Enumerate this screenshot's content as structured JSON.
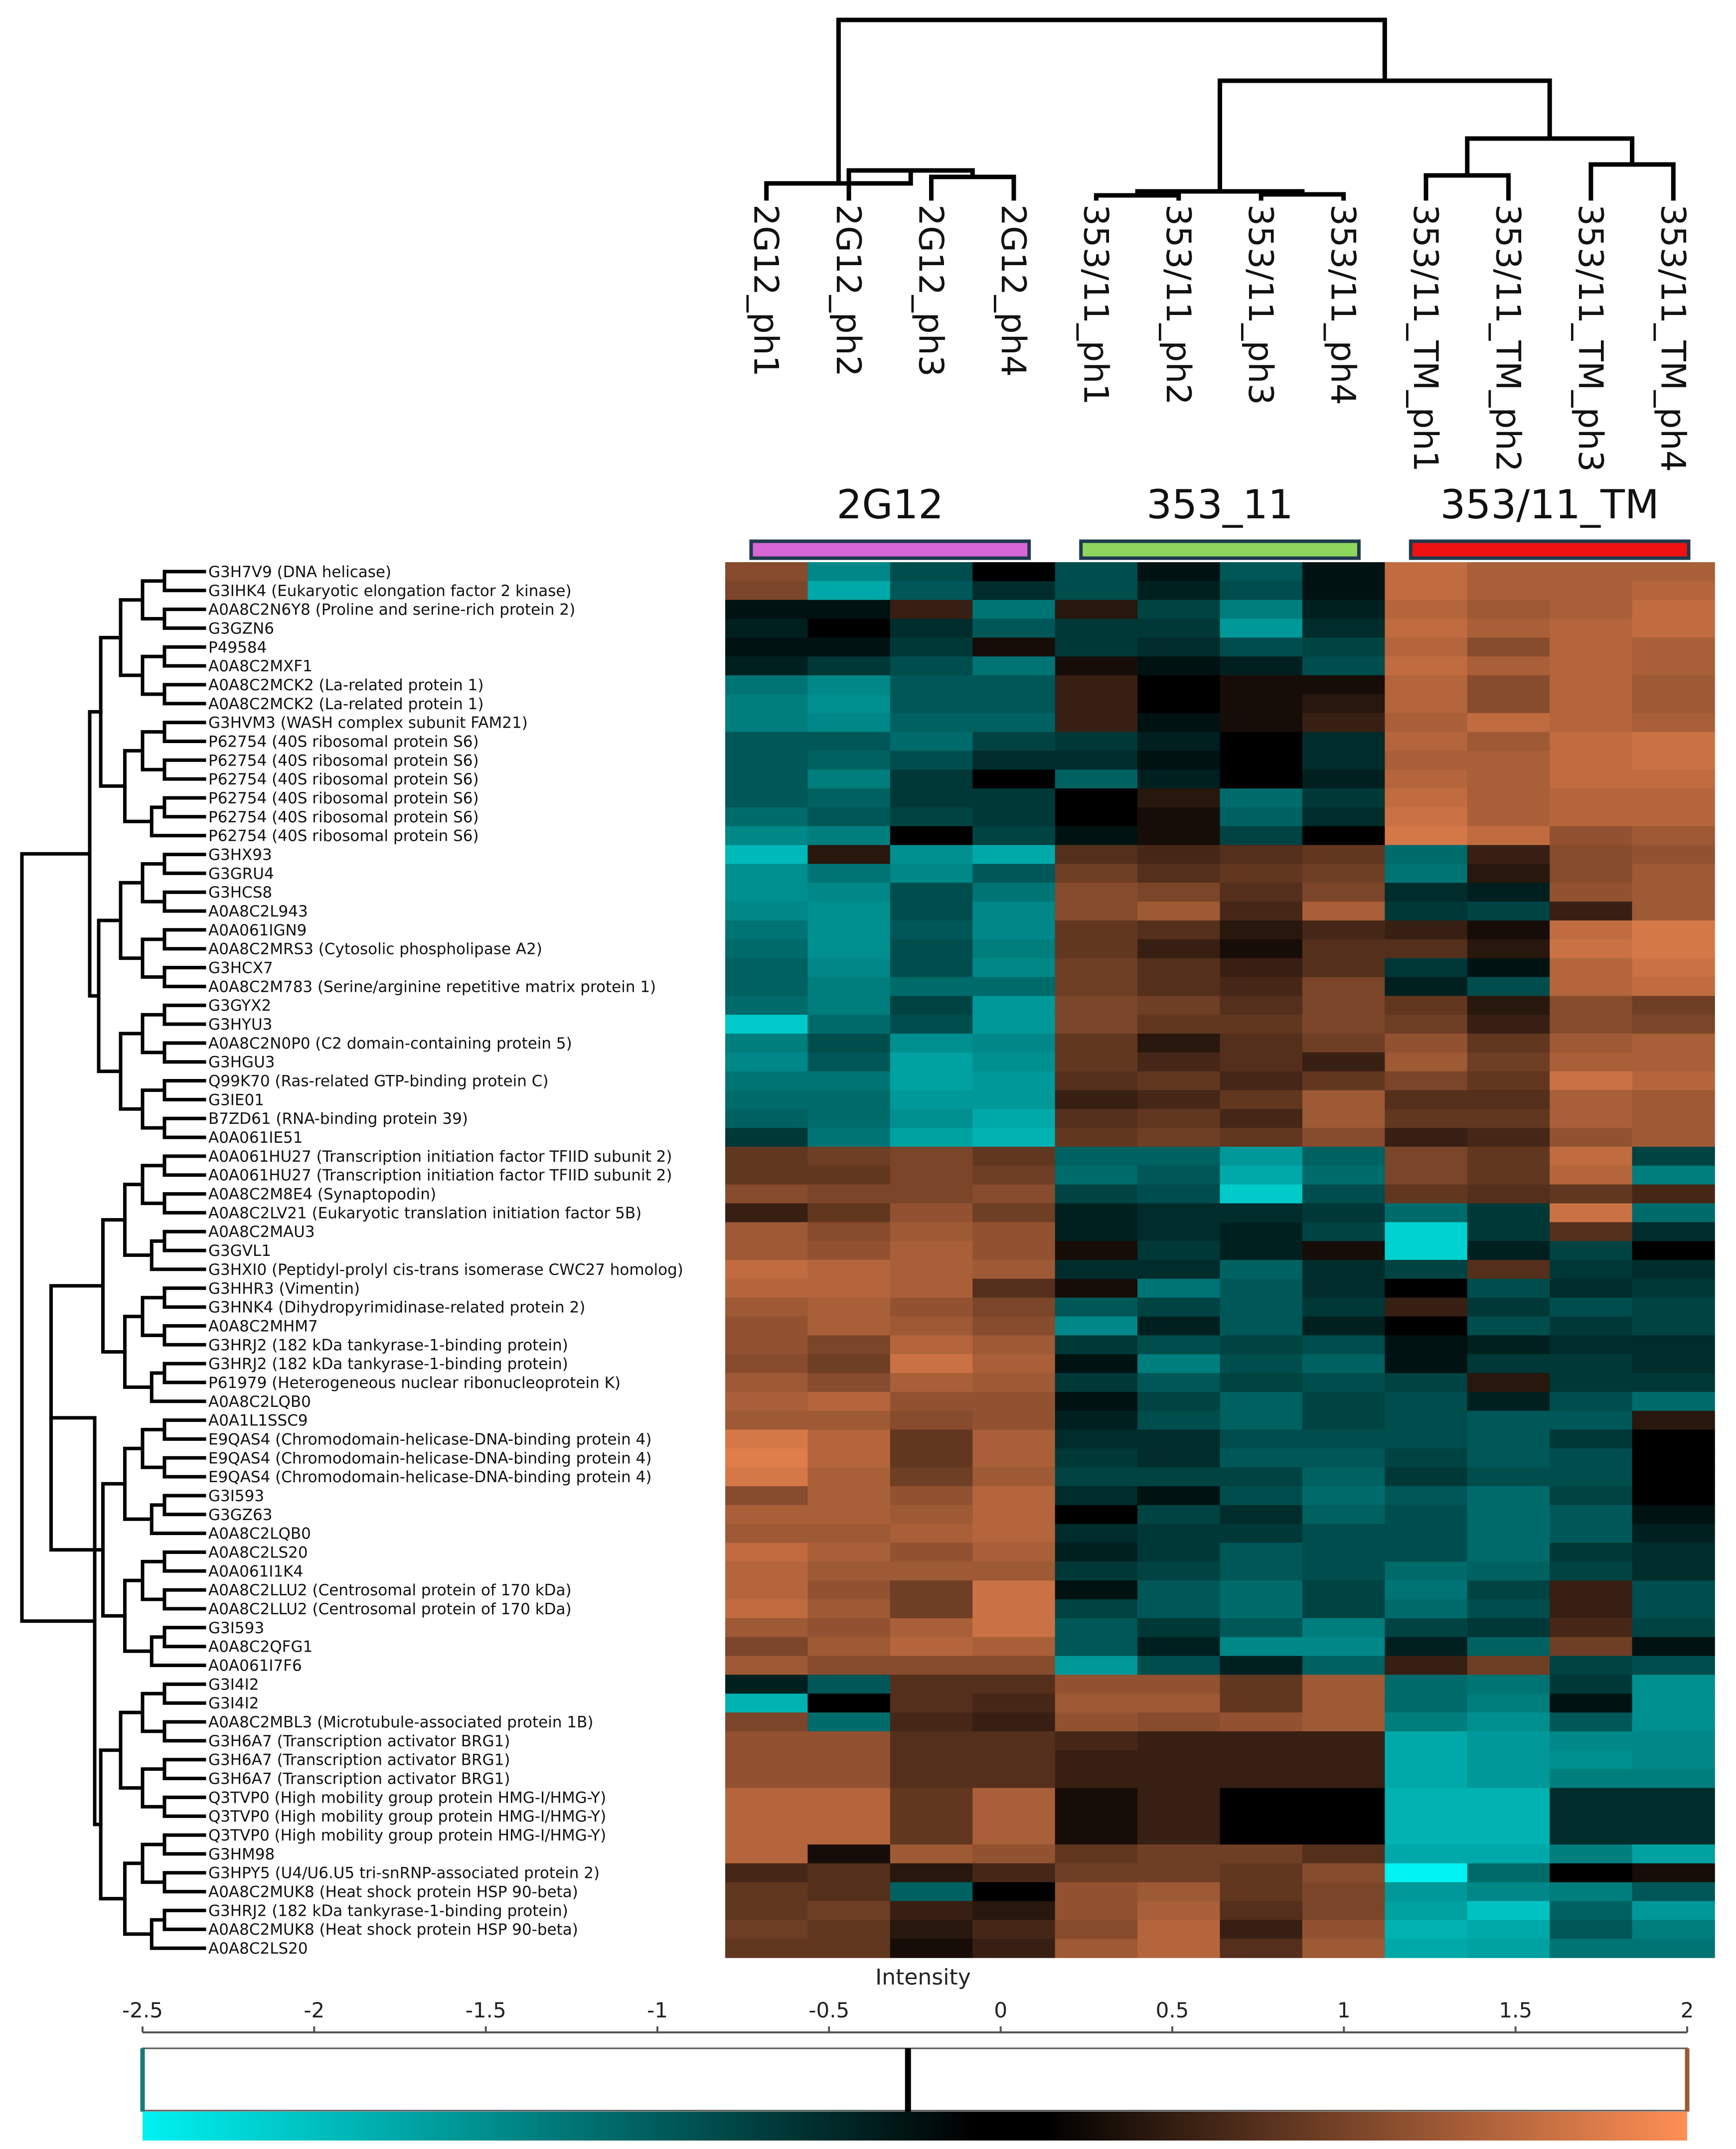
{
  "chart_data": {
    "type": "heatmap",
    "title": "",
    "samples": [
      "2G12_ph1",
      "2G12_ph2",
      "2G12_ph3",
      "2G12_ph4",
      "353/11_ph1",
      "353/11_ph2",
      "353/11_ph3",
      "353/11_ph4",
      "353/11_TM_ph1",
      "353/11_TM_ph2",
      "353/11_TM_ph3",
      "353/11_TM_ph4"
    ],
    "groups": [
      {
        "name": "2G12",
        "color": "#d966d6"
      },
      {
        "name": "353_11",
        "color": "#8fd65e"
      },
      {
        "name": "353/11_TM",
        "color": "#f01212"
      }
    ],
    "rows": [
      "G3H7V9 (DNA helicase)",
      "G3IHK4 (Eukaryotic elongation factor 2 kinase)",
      "A0A8C2N6Y8 (Proline and serine-rich protein 2)",
      "G3GZN6",
      "P49584",
      "A0A8C2MXF1",
      "A0A8C2MCK2 (La-related protein 1)",
      "A0A8C2MCK2 (La-related protein 1)",
      "G3HVM3 (WASH complex subunit FAM21)",
      "P62754 (40S ribosomal protein S6)",
      "P62754 (40S ribosomal protein S6)",
      "P62754 (40S ribosomal protein S6)",
      "P62754 (40S ribosomal protein S6)",
      "P62754 (40S ribosomal protein S6)",
      "P62754 (40S ribosomal protein S6)",
      "G3HX93",
      "G3GRU4",
      "G3HCS8",
      "A0A8C2L943",
      "A0A061IGN9",
      "A0A8C2MRS3 (Cytosolic phospholipase A2)",
      "G3HCX7",
      "A0A8C2M783 (Serine/arginine repetitive matrix protein 1)",
      "G3GYX2",
      "G3HYU3",
      "A0A8C2N0P0 (C2 domain-containing protein 5)",
      "G3HGU3",
      "Q99K70 (Ras-related GTP-binding protein C)",
      "G3IE01",
      "B7ZD61 (RNA-binding protein 39)",
      "A0A061IE51",
      "A0A061HU27 (Transcription initiation factor TFIID subunit 2)",
      "A0A061HU27 (Transcription initiation factor TFIID subunit 2)",
      "A0A8C2M8E4 (Synaptopodin)",
      "A0A8C2LV21 (Eukaryotic translation initiation factor 5B)",
      "A0A8C2MAU3",
      "G3GVL1",
      "G3HXI0 (Peptidyl-prolyl cis-trans isomerase CWC27 homolog)",
      "G3HHR3 (Vimentin)",
      "G3HNK4 (Dihydropyrimidinase-related protein 2)",
      "A0A8C2MHM7",
      "G3HRJ2 (182 kDa tankyrase-1-binding protein)",
      "G3HRJ2 (182 kDa tankyrase-1-binding protein)",
      "P61979 (Heterogeneous nuclear ribonucleoprotein K)",
      "A0A8C2LQB0",
      "A0A1L1SSC9",
      "E9QAS4 (Chromodomain-helicase-DNA-binding protein 4)",
      "E9QAS4 (Chromodomain-helicase-DNA-binding protein 4)",
      "E9QAS4 (Chromodomain-helicase-DNA-binding protein 4)",
      "G3I593",
      "G3GZ63",
      "A0A8C2LQB0",
      "A0A8C2LS20",
      "A0A061I1K4",
      "A0A8C2LLU2 (Centrosomal protein of 170 kDa)",
      "A0A8C2LLU2 (Centrosomal protein of 170 kDa)",
      "G3I593",
      "A0A8C2QFG1",
      "A0A061I7F6",
      "G3I4I2",
      "G3I4I2",
      "A0A8C2MBL3 (Microtubule-associated protein 1B)",
      "G3H6A7 (Transcription activator BRG1)",
      "G3H6A7 (Transcription activator BRG1)",
      "G3H6A7 (Transcription activator BRG1)",
      "Q3TVP0 (High mobility group protein HMG-I/HMG-Y)",
      "Q3TVP0 (High mobility group protein HMG-I/HMG-Y)",
      "Q3TVP0 (High mobility group protein HMG-I/HMG-Y)",
      "G3HM98",
      "G3HPY5 (U4/U6.U5 tri-snRNP-associated protein 2)",
      "A0A8C2MUK8 (Heat shock protein HSP 90-beta)",
      "G3HRJ2 (182 kDa tankyrase-1-binding protein)",
      "A0A8C2MUK8 (Heat shock protein HSP 90-beta)",
      "A0A8C2LS20"
    ],
    "values": [
      [
        0.9,
        -1.2,
        -0.6,
        0.0,
        -0.6,
        -0.1,
        -0.7,
        -0.1,
        1.4,
        1.2,
        1.2,
        1.2
      ],
      [
        0.8,
        -1.6,
        -0.7,
        -0.3,
        -0.6,
        -0.2,
        -0.6,
        -0.1,
        1.4,
        1.2,
        1.2,
        1.3
      ],
      [
        -0.1,
        -0.1,
        0.3,
        -1.0,
        0.2,
        -0.5,
        -1.1,
        -0.2,
        1.3,
        1.1,
        1.2,
        1.4
      ],
      [
        -0.2,
        0.0,
        -0.3,
        -0.7,
        -0.4,
        -0.4,
        -1.4,
        -0.3,
        1.4,
        1.2,
        1.3,
        1.4
      ],
      [
        -0.1,
        -0.1,
        -0.4,
        0.1,
        -0.4,
        -0.3,
        -0.6,
        -0.5,
        1.3,
        0.9,
        1.3,
        1.2
      ],
      [
        -0.2,
        -0.4,
        -0.6,
        -1.0,
        0.1,
        -0.1,
        -0.2,
        -0.6,
        1.4,
        1.2,
        1.3,
        1.2
      ],
      [
        -1.0,
        -1.2,
        -0.7,
        -0.7,
        0.3,
        0.0,
        0.1,
        0.1,
        1.3,
        0.9,
        1.3,
        1.1
      ],
      [
        -1.1,
        -1.3,
        -0.7,
        -0.7,
        0.3,
        0.0,
        0.1,
        0.2,
        1.3,
        0.9,
        1.3,
        1.1
      ],
      [
        -1.1,
        -1.2,
        -0.8,
        -0.8,
        0.3,
        -0.1,
        0.1,
        0.3,
        1.2,
        1.4,
        1.3,
        1.2
      ],
      [
        -0.7,
        -0.7,
        -0.9,
        -0.5,
        -0.4,
        -0.2,
        0.0,
        -0.3,
        1.3,
        1.1,
        1.4,
        1.5
      ],
      [
        -0.7,
        -0.8,
        -0.6,
        -0.3,
        -0.3,
        -0.1,
        0.0,
        -0.3,
        1.2,
        1.2,
        1.4,
        1.5
      ],
      [
        -0.7,
        -1.1,
        -0.4,
        0.0,
        -0.8,
        -0.2,
        0.0,
        -0.2,
        1.3,
        1.2,
        1.4,
        1.4
      ],
      [
        -0.7,
        -0.8,
        -0.4,
        -0.4,
        0.0,
        0.2,
        -0.9,
        -0.4,
        1.4,
        1.2,
        1.3,
        1.3
      ],
      [
        -0.9,
        -0.7,
        -0.5,
        -0.4,
        0.0,
        0.1,
        -0.8,
        -0.3,
        1.5,
        1.2,
        1.3,
        1.3
      ],
      [
        -1.2,
        -1.1,
        0.0,
        -0.5,
        -0.1,
        0.1,
        -0.5,
        0.0,
        1.6,
        1.4,
        1.0,
        1.1
      ],
      [
        -1.8,
        0.2,
        -1.3,
        -1.6,
        0.5,
        0.4,
        0.5,
        0.6,
        -0.9,
        0.3,
        0.9,
        1.0
      ],
      [
        -1.3,
        -1.0,
        -1.2,
        -0.7,
        0.7,
        0.5,
        0.6,
        0.7,
        -1.0,
        0.2,
        0.9,
        1.1
      ],
      [
        -1.3,
        -1.2,
        -0.6,
        -1.0,
        0.9,
        0.8,
        0.5,
        0.8,
        -0.3,
        -0.2,
        1.0,
        1.1
      ],
      [
        -1.2,
        -1.3,
        -0.6,
        -1.2,
        0.9,
        1.1,
        0.4,
        1.2,
        -0.4,
        -0.5,
        0.3,
        1.1
      ],
      [
        -1.0,
        -1.3,
        -0.7,
        -1.2,
        0.6,
        0.5,
        0.2,
        0.4,
        0.3,
        0.1,
        1.4,
        1.6
      ],
      [
        -0.9,
        -1.3,
        -0.6,
        -1.1,
        0.6,
        0.3,
        0.1,
        0.5,
        0.5,
        0.2,
        1.5,
        1.6
      ],
      [
        -0.8,
        -1.2,
        -0.6,
        -1.2,
        0.7,
        0.5,
        0.3,
        0.5,
        -0.4,
        -0.1,
        1.3,
        1.5
      ],
      [
        -0.8,
        -1.1,
        -0.9,
        -0.9,
        0.7,
        0.5,
        0.4,
        0.8,
        -0.2,
        -0.6,
        1.3,
        1.4
      ],
      [
        -0.9,
        -1.1,
        -0.5,
        -1.4,
        0.8,
        0.7,
        0.5,
        0.8,
        0.6,
        0.2,
        0.9,
        0.7
      ],
      [
        -2.0,
        -0.9,
        -0.6,
        -1.4,
        0.8,
        0.6,
        0.6,
        0.8,
        0.7,
        0.3,
        0.9,
        0.8
      ],
      [
        -1.1,
        -0.6,
        -1.3,
        -1.2,
        0.6,
        0.2,
        0.5,
        0.7,
        1.0,
        0.6,
        1.1,
        1.2
      ],
      [
        -1.2,
        -0.7,
        -1.5,
        -1.3,
        0.6,
        0.4,
        0.5,
        0.3,
        1.1,
        0.7,
        1.2,
        1.2
      ],
      [
        -1.0,
        -1.0,
        -1.5,
        -1.4,
        0.5,
        0.6,
        0.4,
        0.6,
        0.8,
        0.6,
        1.5,
        1.3
      ],
      [
        -0.9,
        -0.9,
        -1.4,
        -1.4,
        0.3,
        0.4,
        0.6,
        1.1,
        0.5,
        0.5,
        1.2,
        1.1
      ],
      [
        -0.8,
        -0.9,
        -1.3,
        -1.6,
        0.5,
        0.6,
        0.4,
        1.1,
        0.6,
        0.6,
        1.2,
        1.1
      ],
      [
        -0.4,
        -1.0,
        -1.5,
        -1.7,
        0.6,
        0.7,
        0.6,
        0.9,
        0.3,
        0.4,
        1.0,
        1.1
      ],
      [
        0.6,
        0.7,
        0.8,
        0.6,
        -0.8,
        -0.8,
        -1.4,
        -0.8,
        0.8,
        0.6,
        1.4,
        -0.5
      ],
      [
        0.6,
        0.6,
        0.8,
        0.7,
        -0.9,
        -0.7,
        -1.6,
        -0.9,
        0.8,
        0.6,
        1.3,
        -1.1
      ],
      [
        0.9,
        0.8,
        0.8,
        0.9,
        -0.5,
        -0.6,
        -2.0,
        -0.6,
        0.6,
        0.5,
        0.6,
        0.4
      ],
      [
        0.3,
        0.6,
        1.0,
        0.7,
        -0.2,
        -0.3,
        -0.3,
        -0.4,
        -0.9,
        -0.4,
        1.5,
        -0.9
      ],
      [
        1.1,
        0.9,
        1.1,
        1.0,
        -0.2,
        -0.3,
        -0.2,
        -0.5,
        -2.1,
        -0.4,
        0.5,
        -0.3
      ],
      [
        1.1,
        1.0,
        1.2,
        1.0,
        0.1,
        -0.4,
        -0.2,
        0.1,
        -2.1,
        -0.2,
        -0.5,
        0.0
      ],
      [
        1.4,
        1.3,
        1.2,
        1.1,
        -0.3,
        -0.3,
        -0.8,
        -0.3,
        -0.5,
        0.5,
        -0.4,
        -0.3
      ],
      [
        1.3,
        1.3,
        1.2,
        0.5,
        0.1,
        -1.0,
        -0.7,
        -0.3,
        0.0,
        -0.6,
        -0.3,
        -0.4
      ],
      [
        1.1,
        1.2,
        1.0,
        0.8,
        -0.7,
        -0.5,
        -0.7,
        -0.4,
        0.3,
        -0.4,
        -0.6,
        -0.5
      ],
      [
        1.0,
        1.2,
        1.1,
        0.9,
        -1.2,
        -0.2,
        -0.7,
        -0.2,
        0.0,
        -0.6,
        -0.4,
        -0.5
      ],
      [
        1.0,
        0.8,
        1.3,
        1.1,
        -0.4,
        -0.6,
        -0.5,
        -0.6,
        -0.1,
        -0.2,
        -0.3,
        -0.3
      ],
      [
        0.9,
        0.7,
        1.5,
        1.2,
        -0.1,
        -1.1,
        -0.6,
        -0.8,
        -0.1,
        -0.4,
        -0.4,
        -0.3
      ],
      [
        1.1,
        0.9,
        1.2,
        1.1,
        -0.4,
        -0.7,
        -0.5,
        -0.6,
        -0.5,
        0.2,
        -0.4,
        -0.4
      ],
      [
        1.2,
        1.3,
        1.0,
        1.0,
        -0.1,
        -0.5,
        -0.8,
        -0.5,
        -0.6,
        -0.2,
        -0.6,
        -0.9
      ],
      [
        1.1,
        1.1,
        0.9,
        1.0,
        -0.2,
        -0.6,
        -0.8,
        -0.5,
        -0.6,
        -0.7,
        -0.7,
        0.2
      ],
      [
        1.6,
        1.3,
        0.6,
        1.2,
        -0.3,
        -0.3,
        -0.6,
        -0.6,
        -0.6,
        -0.7,
        -0.4,
        0.0
      ],
      [
        1.7,
        1.3,
        0.6,
        1.2,
        -0.4,
        -0.3,
        -0.7,
        -0.7,
        -0.5,
        -0.7,
        -0.6,
        0.0
      ],
      [
        1.6,
        1.2,
        0.7,
        1.1,
        -0.5,
        -0.5,
        -0.5,
        -0.8,
        -0.4,
        -0.6,
        -0.6,
        0.0
      ],
      [
        0.9,
        1.2,
        1.0,
        1.3,
        -0.3,
        -0.1,
        -0.6,
        -0.9,
        -0.7,
        -0.9,
        -0.5,
        0.0
      ],
      [
        1.2,
        1.2,
        1.1,
        1.3,
        0.0,
        -0.5,
        -0.3,
        -0.8,
        -0.6,
        -0.9,
        -0.7,
        -0.1
      ],
      [
        1.1,
        1.1,
        1.2,
        1.3,
        -0.3,
        -0.4,
        -0.4,
        -0.6,
        -0.6,
        -0.9,
        -0.7,
        -0.2
      ],
      [
        1.4,
        1.2,
        1.0,
        1.2,
        -0.2,
        -0.4,
        -0.7,
        -0.6,
        -0.6,
        -0.9,
        -0.4,
        -0.3
      ],
      [
        1.3,
        1.1,
        1.1,
        1.1,
        -0.4,
        -0.5,
        -0.7,
        -0.6,
        -0.9,
        -0.8,
        -0.5,
        -0.3
      ],
      [
        1.3,
        1.0,
        0.7,
        1.5,
        -0.1,
        -0.7,
        -0.9,
        -0.5,
        -1.0,
        -0.5,
        0.3,
        -0.6
      ],
      [
        1.4,
        1.1,
        0.7,
        1.5,
        -0.5,
        -0.7,
        -0.9,
        -0.5,
        -0.9,
        -0.6,
        0.3,
        -0.6
      ],
      [
        1.1,
        1.0,
        1.2,
        1.5,
        -0.7,
        -0.4,
        -0.7,
        -1.1,
        -0.5,
        -0.4,
        0.4,
        -0.5
      ],
      [
        0.8,
        1.1,
        1.3,
        1.2,
        -0.7,
        -0.2,
        -1.2,
        -1.2,
        -0.2,
        -0.8,
        0.7,
        -0.1
      ],
      [
        1.1,
        0.9,
        0.9,
        0.9,
        -1.4,
        -0.6,
        -0.2,
        -0.8,
        0.3,
        0.7,
        -0.5,
        -0.6
      ],
      [
        -0.2,
        -0.7,
        0.5,
        0.5,
        1.0,
        1.0,
        0.6,
        1.1,
        -0.9,
        -1.0,
        -0.4,
        -1.3
      ],
      [
        -1.7,
        0.0,
        0.5,
        0.4,
        1.1,
        1.1,
        0.6,
        1.1,
        -0.9,
        -1.1,
        -0.1,
        -1.3
      ],
      [
        0.8,
        -0.9,
        0.4,
        0.3,
        1.0,
        0.9,
        1.0,
        1.1,
        -1.1,
        -1.3,
        -0.7,
        -1.3
      ],
      [
        1.0,
        1.0,
        0.5,
        0.5,
        0.4,
        0.3,
        0.3,
        0.3,
        -1.6,
        -1.4,
        -1.2,
        -1.2
      ],
      [
        1.0,
        1.0,
        0.5,
        0.5,
        0.3,
        0.3,
        0.3,
        0.3,
        -1.6,
        -1.4,
        -1.3,
        -1.2
      ],
      [
        1.0,
        1.0,
        0.5,
        0.5,
        0.3,
        0.3,
        0.3,
        0.3,
        -1.6,
        -1.4,
        -1.1,
        -1.1
      ],
      [
        1.3,
        1.3,
        0.6,
        1.2,
        0.1,
        0.3,
        0.0,
        0.0,
        -1.7,
        -1.7,
        -0.3,
        -0.3
      ],
      [
        1.3,
        1.3,
        0.6,
        1.2,
        0.1,
        0.3,
        0.0,
        0.0,
        -1.7,
        -1.7,
        -0.3,
        -0.3
      ],
      [
        1.3,
        1.3,
        0.6,
        1.2,
        0.1,
        0.3,
        0.0,
        0.0,
        -1.7,
        -1.7,
        -0.3,
        -0.3
      ],
      [
        1.3,
        0.1,
        1.1,
        1.0,
        0.6,
        0.7,
        0.7,
        0.5,
        -1.6,
        -1.6,
        -1.1,
        -1.5
      ],
      [
        0.4,
        0.5,
        0.2,
        0.4,
        0.7,
        0.7,
        0.6,
        0.9,
        -2.5,
        -0.9,
        0.0,
        0.1
      ],
      [
        0.6,
        0.5,
        -0.8,
        0.0,
        1.0,
        1.1,
        0.6,
        0.8,
        -1.4,
        -1.2,
        -1.1,
        -0.7
      ],
      [
        0.6,
        0.7,
        0.3,
        0.2,
        1.0,
        1.2,
        0.5,
        0.8,
        -1.5,
        -1.9,
        -0.8,
        -1.4
      ],
      [
        0.7,
        0.6,
        0.2,
        0.4,
        0.9,
        1.3,
        0.3,
        1.0,
        -1.7,
        -1.6,
        -0.7,
        -1.1
      ],
      [
        0.6,
        0.6,
        0.1,
        0.3,
        1.1,
        1.3,
        0.5,
        1.1,
        -1.6,
        -1.5,
        -1.0,
        -1.0
      ]
    ],
    "colorbar": {
      "label": "Intensity",
      "min": -2.5,
      "max": 2,
      "ticks": [
        "-2.5",
        "-2",
        "-1.5",
        "-1",
        "-0.5",
        "0",
        "0.5",
        "1",
        "1.5",
        "2"
      ],
      "markers": [
        -2.5,
        -0.27,
        2.0
      ],
      "low_color": "#00f2f2",
      "mid_color": "#000000",
      "high_color": "#ff8f55"
    }
  }
}
